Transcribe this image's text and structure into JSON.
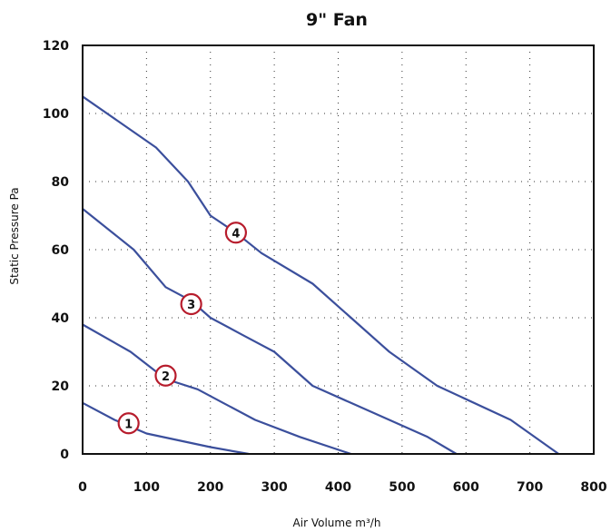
{
  "chart_data": {
    "type": "line",
    "title": "9\" Fan",
    "xlabel": "Air Volume m³/h",
    "ylabel": "Static Pressure Pa",
    "xlim": [
      0,
      800
    ],
    "ylim": [
      0,
      120
    ],
    "xticks": [
      "0",
      "100",
      "200",
      "300",
      "400",
      "500",
      "600",
      "700",
      "800"
    ],
    "yticks": [
      "0",
      "20",
      "40",
      "60",
      "80",
      "100",
      "120"
    ],
    "grid": "dotted",
    "legend": "none",
    "series_color": "#3b4f9c",
    "marker_color": "#b71c2c",
    "series": [
      {
        "marker": "1",
        "marker_at": [
          72,
          9
        ],
        "x": [
          0,
          50,
          100,
          150,
          200,
          260
        ],
        "y": [
          15,
          10,
          6,
          4,
          2,
          0
        ]
      },
      {
        "marker": "2",
        "marker_at": [
          130,
          23
        ],
        "x": [
          0,
          75,
          130,
          180,
          220,
          270,
          340,
          420
        ],
        "y": [
          38,
          30,
          22,
          19,
          15,
          10,
          5,
          0
        ]
      },
      {
        "marker": "3",
        "marker_at": [
          170,
          44
        ],
        "x": [
          0,
          80,
          130,
          170,
          200,
          250,
          300,
          360,
          420,
          480,
          540,
          585
        ],
        "y": [
          72,
          60,
          49,
          45,
          40,
          35,
          30,
          20,
          15,
          10,
          5,
          0
        ]
      },
      {
        "marker": "4",
        "marker_at": [
          240,
          65
        ],
        "x": [
          0,
          115,
          165,
          200,
          240,
          280,
          360,
          420,
          480,
          555,
          670,
          745
        ],
        "y": [
          105,
          90,
          80,
          70,
          65,
          59,
          50,
          40,
          30,
          20,
          10,
          0
        ]
      }
    ]
  }
}
